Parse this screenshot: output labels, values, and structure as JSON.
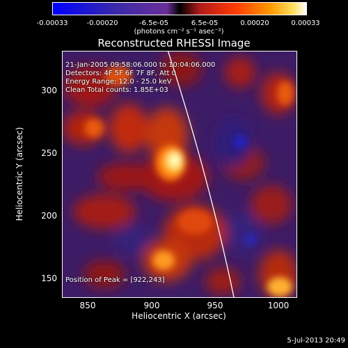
{
  "colorbar": {
    "ticks": [
      "-0.00033",
      "-0.00020",
      "-6.5e-05",
      "6.5e-05",
      "0.00020",
      "0.00033"
    ],
    "units": "(photons cm⁻² s⁻¹ asec⁻²)"
  },
  "title": "Reconstructed RHESSI Image",
  "info": {
    "time_range": "21-Jan-2005 09:58:06.000 to 10:04:06.000",
    "detectors": "Detectors: 4F 5F 6F 7F 8F, Att 0",
    "energy": "Energy Range: 12.0 - 25.0 keV",
    "clean": "Clean     Total counts: 1.85E+03",
    "peak": "Position of Peak = [922,243]"
  },
  "axes": {
    "xlabel": "Heliocentric X (arcsec)",
    "ylabel": "Heliocentric Y (arcsec)",
    "xticks": [
      "850",
      "900",
      "950",
      "1000"
    ],
    "yticks": [
      "300",
      "250",
      "200",
      "150"
    ]
  },
  "footer_date": "5-Jul-2013 20:49",
  "colors": {
    "background": "#000000",
    "limb_line": "#ffffff"
  }
}
